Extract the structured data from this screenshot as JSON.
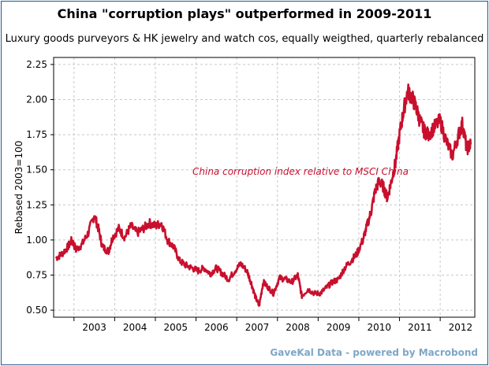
{
  "chart_data": {
    "type": "line",
    "title": "China \"corruption plays\" outperformed in 2009-2011",
    "subtitle": "Luxury goods purveyors & HK jewelry and watch cos, equally weigthed, quarterly rebalanced",
    "xlabel": "",
    "ylabel": "Rebased 2003=100",
    "ylim": [
      0.45,
      2.3
    ],
    "yticks": [
      "0.50",
      "0.75",
      "1.00",
      "1.25",
      "1.50",
      "1.75",
      "2.00",
      "2.25"
    ],
    "xlim": [
      2002.5,
      2012.85
    ],
    "xticks": [
      "2003",
      "2004",
      "2005",
      "2006",
      "2007",
      "2008",
      "2009",
      "2010",
      "2011",
      "2012"
    ],
    "grid": true,
    "annotation": "China corruption index relative to MSCI China",
    "series": [
      {
        "color": "#c8102e",
        "x": [
          2002.55,
          2002.7,
          2002.85,
          2002.95,
          2003.05,
          2003.2,
          2003.35,
          2003.5,
          2003.6,
          2003.7,
          2003.85,
          2003.95,
          2004.1,
          2004.25,
          2004.4,
          2004.55,
          2004.7,
          2004.85,
          2005.0,
          2005.15,
          2005.3,
          2005.45,
          2005.6,
          2005.75,
          2005.9,
          2006.05,
          2006.2,
          2006.35,
          2006.5,
          2006.65,
          2006.8,
          2006.95,
          2007.1,
          2007.25,
          2007.35,
          2007.45,
          2007.55,
          2007.65,
          2007.75,
          2007.9,
          2008.05,
          2008.2,
          2008.35,
          2008.5,
          2008.6,
          2008.75,
          2008.9,
          2009.05,
          2009.2,
          2009.35,
          2009.5,
          2009.65,
          2009.8,
          2009.95,
          2010.1,
          2010.2,
          2010.3,
          2010.4,
          2010.5,
          2010.6,
          2010.7,
          2010.8,
          2010.9,
          2011.0,
          2011.1,
          2011.2,
          2011.3,
          2011.4,
          2011.5,
          2011.6,
          2011.7,
          2011.85,
          2012.0,
          2012.15,
          2012.3,
          2012.45,
          2012.55,
          2012.65,
          2012.75
        ],
        "values": [
          0.87,
          0.9,
          0.95,
          1.0,
          0.93,
          0.97,
          1.05,
          1.18,
          1.08,
          0.95,
          0.92,
          1.02,
          1.08,
          1.02,
          1.1,
          1.05,
          1.08,
          1.12,
          1.1,
          1.12,
          1.0,
          0.95,
          0.85,
          0.82,
          0.8,
          0.78,
          0.8,
          0.76,
          0.8,
          0.76,
          0.72,
          0.78,
          0.83,
          0.78,
          0.7,
          0.6,
          0.53,
          0.7,
          0.67,
          0.62,
          0.73,
          0.72,
          0.7,
          0.75,
          0.6,
          0.65,
          0.62,
          0.62,
          0.66,
          0.7,
          0.72,
          0.8,
          0.85,
          0.9,
          1.0,
          1.1,
          1.2,
          1.35,
          1.42,
          1.38,
          1.3,
          1.42,
          1.55,
          1.75,
          1.92,
          2.06,
          2.02,
          1.95,
          1.85,
          1.78,
          1.75,
          1.8,
          1.85,
          1.7,
          1.6,
          1.75,
          1.83,
          1.65,
          1.68
        ]
      }
    ]
  },
  "footer": {
    "credit": "GaveKal Data - powered by Macrobond"
  }
}
